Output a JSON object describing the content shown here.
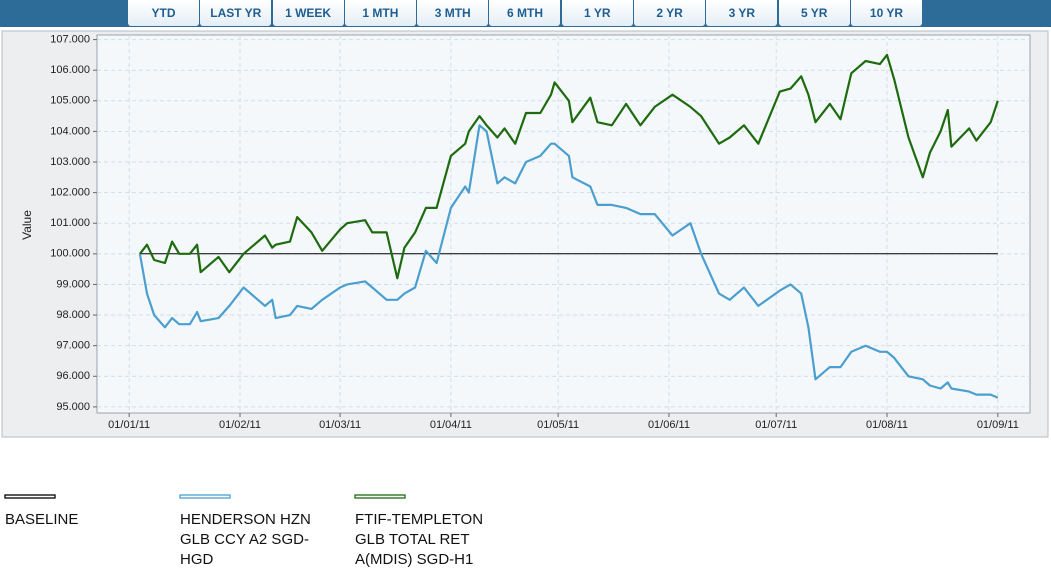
{
  "buttons": [
    "YTD",
    "LAST YR",
    "1 WEEK",
    "1 MTH",
    "3 MTH",
    "6 MTH",
    "1 YR",
    "2 YR",
    "3 YR",
    "5 YR",
    "10 YR"
  ],
  "chart_data": {
    "type": "line",
    "y_label": "Value",
    "x": [
      "2011-01-04",
      "2011-01-06",
      "2011-01-08",
      "2011-01-11",
      "2011-01-13",
      "2011-01-15",
      "2011-01-18",
      "2011-01-20",
      "2011-01-21",
      "2011-01-26",
      "2011-01-29",
      "2011-02-02",
      "2011-02-08",
      "2011-02-10",
      "2011-02-11",
      "2011-02-15",
      "2011-02-17",
      "2011-02-21",
      "2011-02-24",
      "2011-03-01",
      "2011-03-03",
      "2011-03-08",
      "2011-03-10",
      "2011-03-14",
      "2011-03-17",
      "2011-03-19",
      "2011-03-22",
      "2011-03-25",
      "2011-03-28",
      "2011-04-01",
      "2011-04-05",
      "2011-04-06",
      "2011-04-09",
      "2011-04-11",
      "2011-04-14",
      "2011-04-16",
      "2011-04-19",
      "2011-04-22",
      "2011-04-26",
      "2011-04-29",
      "2011-04-30",
      "2011-05-04",
      "2011-05-05",
      "2011-05-10",
      "2011-05-12",
      "2011-05-16",
      "2011-05-20",
      "2011-05-24",
      "2011-05-28",
      "2011-06-02",
      "2011-06-07",
      "2011-06-10",
      "2011-06-15",
      "2011-06-18",
      "2011-06-22",
      "2011-06-26",
      "2011-07-02",
      "2011-07-05",
      "2011-07-08",
      "2011-07-10",
      "2011-07-12",
      "2011-07-16",
      "2011-07-19",
      "2011-07-22",
      "2011-07-26",
      "2011-07-30",
      "2011-08-01",
      "2011-08-03",
      "2011-08-07",
      "2011-08-11",
      "2011-08-13",
      "2011-08-16",
      "2011-08-18",
      "2011-08-19",
      "2011-08-24",
      "2011-08-26",
      "2011-08-30",
      "2011-09-01"
    ],
    "series": [
      {
        "name": "BASELINE",
        "color": "#000000",
        "values": [
          100,
          100,
          100,
          100,
          100,
          100,
          100,
          100,
          100,
          100,
          100,
          100,
          100,
          100,
          100,
          100,
          100,
          100,
          100,
          100,
          100,
          100,
          100,
          100,
          100,
          100,
          100,
          100,
          100,
          100,
          100,
          100,
          100,
          100,
          100,
          100,
          100,
          100,
          100,
          100,
          100,
          100,
          100,
          100,
          100,
          100,
          100,
          100,
          100,
          100,
          100,
          100,
          100,
          100,
          100,
          100,
          100,
          100,
          100,
          100,
          100,
          100,
          100,
          100,
          100,
          100,
          100,
          100,
          100,
          100,
          100,
          100,
          100,
          100,
          100,
          100,
          100,
          100
        ]
      },
      {
        "name": "HENDERSON HZN GLB CCY A2 SGD-HGD",
        "color": "#4a9fcf",
        "values": [
          100.0,
          98.7,
          98.0,
          97.6,
          97.9,
          97.7,
          97.7,
          98.1,
          97.8,
          97.9,
          98.3,
          98.9,
          98.3,
          98.5,
          97.9,
          98.0,
          98.3,
          98.2,
          98.5,
          98.9,
          99.0,
          99.1,
          98.9,
          98.5,
          98.5,
          98.7,
          98.9,
          100.1,
          99.7,
          101.5,
          102.2,
          102.0,
          104.2,
          104.0,
          102.3,
          102.5,
          102.3,
          103.0,
          103.2,
          103.6,
          103.6,
          103.2,
          102.5,
          102.2,
          101.6,
          101.6,
          101.5,
          101.3,
          101.3,
          100.6,
          101.0,
          100.0,
          98.7,
          98.5,
          98.9,
          98.3,
          98.8,
          99.0,
          98.7,
          97.6,
          95.9,
          96.3,
          96.3,
          96.8,
          97.0,
          96.8,
          96.8,
          96.6,
          96.0,
          95.9,
          95.7,
          95.6,
          95.8,
          95.6,
          95.5,
          95.4,
          95.4,
          95.3
        ]
      },
      {
        "name": "FTIF-TEMPLETON GLB TOTAL RET A(MDIS) SGD-H1",
        "color": "#1d6b0e",
        "values": [
          100.0,
          100.3,
          99.8,
          99.7,
          100.4,
          100.0,
          100.0,
          100.3,
          99.4,
          99.9,
          99.4,
          100.0,
          100.6,
          100.2,
          100.3,
          100.4,
          101.2,
          100.7,
          100.1,
          100.8,
          101.0,
          101.1,
          100.7,
          100.7,
          99.2,
          100.2,
          100.7,
          101.5,
          101.5,
          103.2,
          103.6,
          104.0,
          104.5,
          104.2,
          103.8,
          104.1,
          103.6,
          104.6,
          104.6,
          105.2,
          105.6,
          105.0,
          104.3,
          105.1,
          104.3,
          104.2,
          104.9,
          104.2,
          104.8,
          105.2,
          104.8,
          104.5,
          103.6,
          103.8,
          104.2,
          103.6,
          105.3,
          105.4,
          105.8,
          105.2,
          104.3,
          104.9,
          104.4,
          105.9,
          106.3,
          106.2,
          106.5,
          105.7,
          103.8,
          102.5,
          103.3,
          104.0,
          104.7,
          103.5,
          104.1,
          103.7,
          104.3,
          105.0
        ]
      }
    ],
    "xlim": [
      "2010-12-23",
      "2011-09-10"
    ],
    "xticks": [
      {
        "value": "2011-01-01",
        "label": "01/01/11"
      },
      {
        "value": "2011-02-01",
        "label": "01/02/11"
      },
      {
        "value": "2011-03-01",
        "label": "01/03/11"
      },
      {
        "value": "2011-04-01",
        "label": "01/04/11"
      },
      {
        "value": "2011-05-01",
        "label": "01/05/11"
      },
      {
        "value": "2011-06-01",
        "label": "01/06/11"
      },
      {
        "value": "2011-07-01",
        "label": "01/07/11"
      },
      {
        "value": "2011-08-01",
        "label": "01/08/11"
      },
      {
        "value": "2011-09-01",
        "label": "01/09/11"
      }
    ],
    "ylim": [
      94.8,
      107.15
    ],
    "yticks": [
      {
        "value": 95,
        "label": "95.000"
      },
      {
        "value": 96,
        "label": "96.000"
      },
      {
        "value": 97,
        "label": "97.000"
      },
      {
        "value": 98,
        "label": "98.000"
      },
      {
        "value": 99,
        "label": "99.000"
      },
      {
        "value": 100,
        "label": "100.000"
      },
      {
        "value": 101,
        "label": "101.000"
      },
      {
        "value": 102,
        "label": "102.000"
      },
      {
        "value": 103,
        "label": "103.000"
      },
      {
        "value": 104,
        "label": "104.000"
      },
      {
        "value": 105,
        "label": "105.000"
      },
      {
        "value": 106,
        "label": "106.000"
      },
      {
        "value": 107,
        "label": "107.000"
      }
    ],
    "grid": true
  }
}
